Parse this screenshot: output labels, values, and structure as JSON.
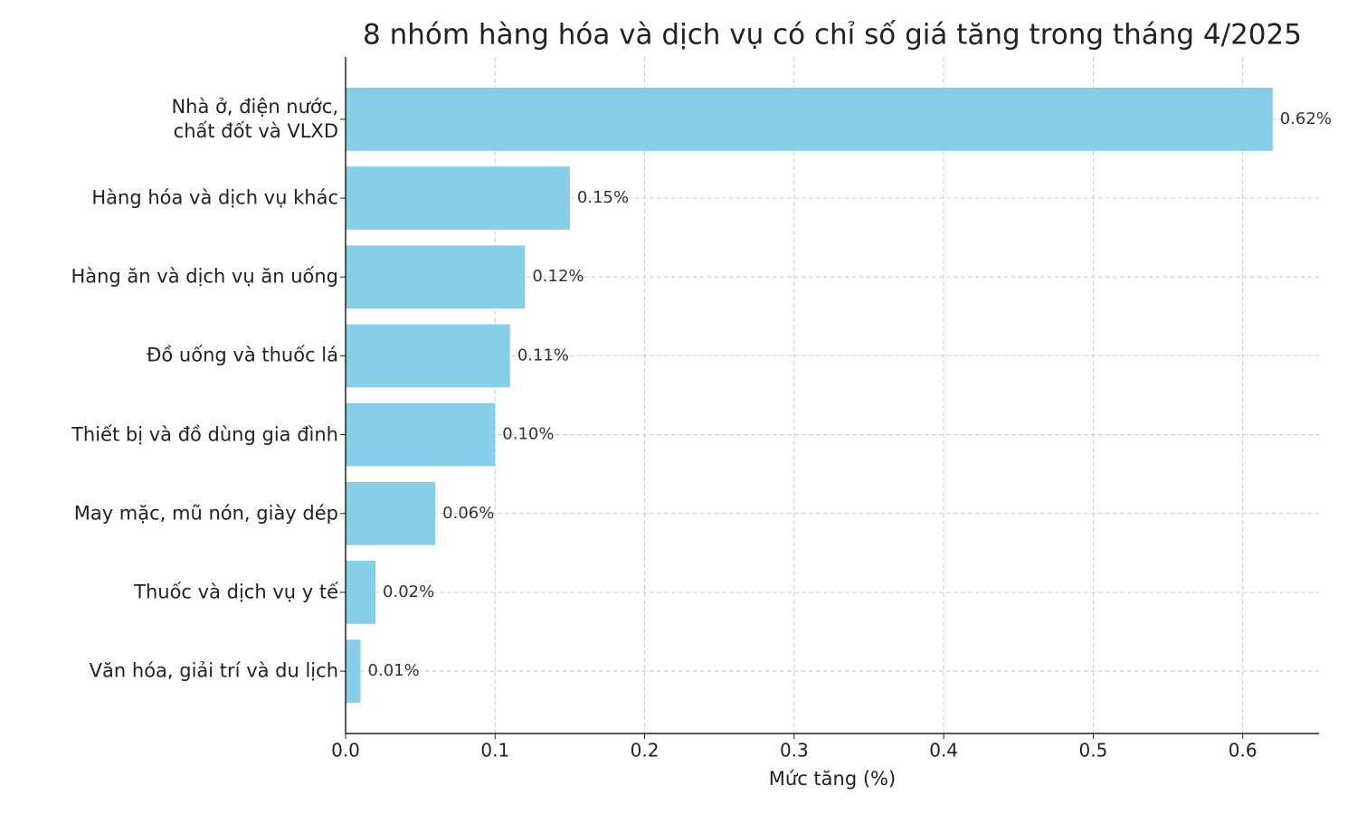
{
  "chart_data": {
    "type": "barh",
    "title": "8 nhóm hàng hóa và dịch vụ có chỉ số giá tăng trong tháng 4/2025",
    "x_label": "Mức tăng (%)",
    "categories": [
      "Nhà ở, điện nước,\nchất đốt và VLXD",
      "Hàng hóa và dịch vụ khác",
      "Hàng ăn và dịch vụ ăn uống",
      "Đồ uống và thuốc lá",
      "Thiết bị và đồ dùng gia đình",
      "May mặc, mũ nón, giày dép",
      "Thuốc và dịch vụ y tế",
      "Văn hóa, giải trí và du lịch"
    ],
    "values": [
      0.62,
      0.15,
      0.12,
      0.11,
      0.1,
      0.06,
      0.02,
      0.01
    ],
    "value_labels": [
      "0.62%",
      "0.15%",
      "0.12%",
      "0.11%",
      "0.10%",
      "0.06%",
      "0.02%",
      "0.01%"
    ],
    "color": "#87ceeb",
    "xlim": [
      0,
      0.651
    ],
    "xticks": [
      {
        "value": 0,
        "label": "0.0"
      },
      0.1,
      0.2,
      0.3,
      0.4,
      0.5,
      0.6
    ],
    "grid": true
  }
}
